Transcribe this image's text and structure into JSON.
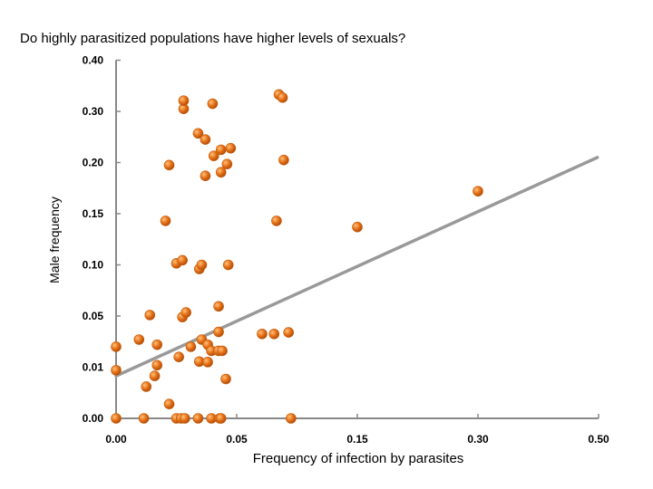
{
  "chart_data": {
    "type": "scatter",
    "title": "Do highly parasitized populations have higher levels of sexuals?",
    "xlabel": "Frequency of infection by parasites",
    "ylabel": "Male frequency",
    "x_ticks": [
      "0.00",
      "0.05",
      "0.15",
      "0.30",
      "0.50"
    ],
    "y_ticks": [
      "0.00",
      "0.01",
      "0.05",
      "0.10",
      "0.15",
      "0.20",
      "0.30",
      "0.40"
    ],
    "xlim_tick_index": [
      0,
      4
    ],
    "ylim_tick_index": [
      0,
      7
    ],
    "scale_note_x": "non-linear, evenly spaced tick labels",
    "scale_note_y": "non-linear, evenly spaced tick labels",
    "grid": false,
    "marker_color": "#e8731a",
    "trend_color": "#999999",
    "axis_color": "#888888",
    "points_tick_space": [
      [
        0.0,
        0.0
      ],
      [
        0.0,
        0.94
      ],
      [
        0.0,
        1.4
      ],
      [
        0.19,
        1.54
      ],
      [
        0.23,
        0.0
      ],
      [
        0.25,
        0.62
      ],
      [
        0.28,
        2.02
      ],
      [
        0.32,
        0.83
      ],
      [
        0.34,
        1.04
      ],
      [
        0.34,
        1.44
      ],
      [
        0.41,
        3.86
      ],
      [
        0.44,
        0.28
      ],
      [
        0.44,
        4.95
      ],
      [
        0.5,
        0.0
      ],
      [
        0.5,
        3.03
      ],
      [
        0.52,
        1.2
      ],
      [
        0.54,
        0.0
      ],
      [
        0.55,
        1.98
      ],
      [
        0.55,
        3.09
      ],
      [
        0.56,
        6.05
      ],
      [
        0.56,
        6.21
      ],
      [
        0.57,
        0.0
      ],
      [
        0.58,
        2.07
      ],
      [
        0.62,
        1.4
      ],
      [
        0.68,
        0.0
      ],
      [
        0.68,
        5.57
      ],
      [
        0.69,
        1.11
      ],
      [
        0.69,
        2.92
      ],
      [
        0.71,
        1.54
      ],
      [
        0.71,
        3.0
      ],
      [
        0.74,
        4.74
      ],
      [
        0.74,
        5.45
      ],
      [
        0.76,
        1.1
      ],
      [
        0.76,
        1.44
      ],
      [
        0.79,
        0.0
      ],
      [
        0.79,
        1.32
      ],
      [
        0.81,
        5.13
      ],
      [
        0.8,
        6.15
      ],
      [
        0.85,
        1.32
      ],
      [
        0.85,
        2.19
      ],
      [
        0.85,
        1.69
      ],
      [
        0.86,
        0.0
      ],
      [
        0.87,
        0.0
      ],
      [
        0.87,
        4.81
      ],
      [
        0.87,
        5.25
      ],
      [
        0.88,
        1.32
      ],
      [
        0.91,
        0.77
      ],
      [
        0.92,
        4.97
      ],
      [
        0.93,
        3.0
      ],
      [
        0.95,
        5.28
      ],
      [
        1.21,
        1.65
      ],
      [
        1.31,
        1.65
      ],
      [
        1.33,
        3.86
      ],
      [
        1.35,
        6.33
      ],
      [
        1.38,
        6.27
      ],
      [
        1.39,
        5.05
      ],
      [
        1.43,
        1.68
      ],
      [
        1.45,
        0.0
      ],
      [
        2.0,
        3.74
      ],
      [
        3.0,
        4.44
      ]
    ],
    "trend_line_tick_space": [
      [
        0.0,
        0.83
      ],
      [
        3.99,
        5.1
      ]
    ]
  }
}
